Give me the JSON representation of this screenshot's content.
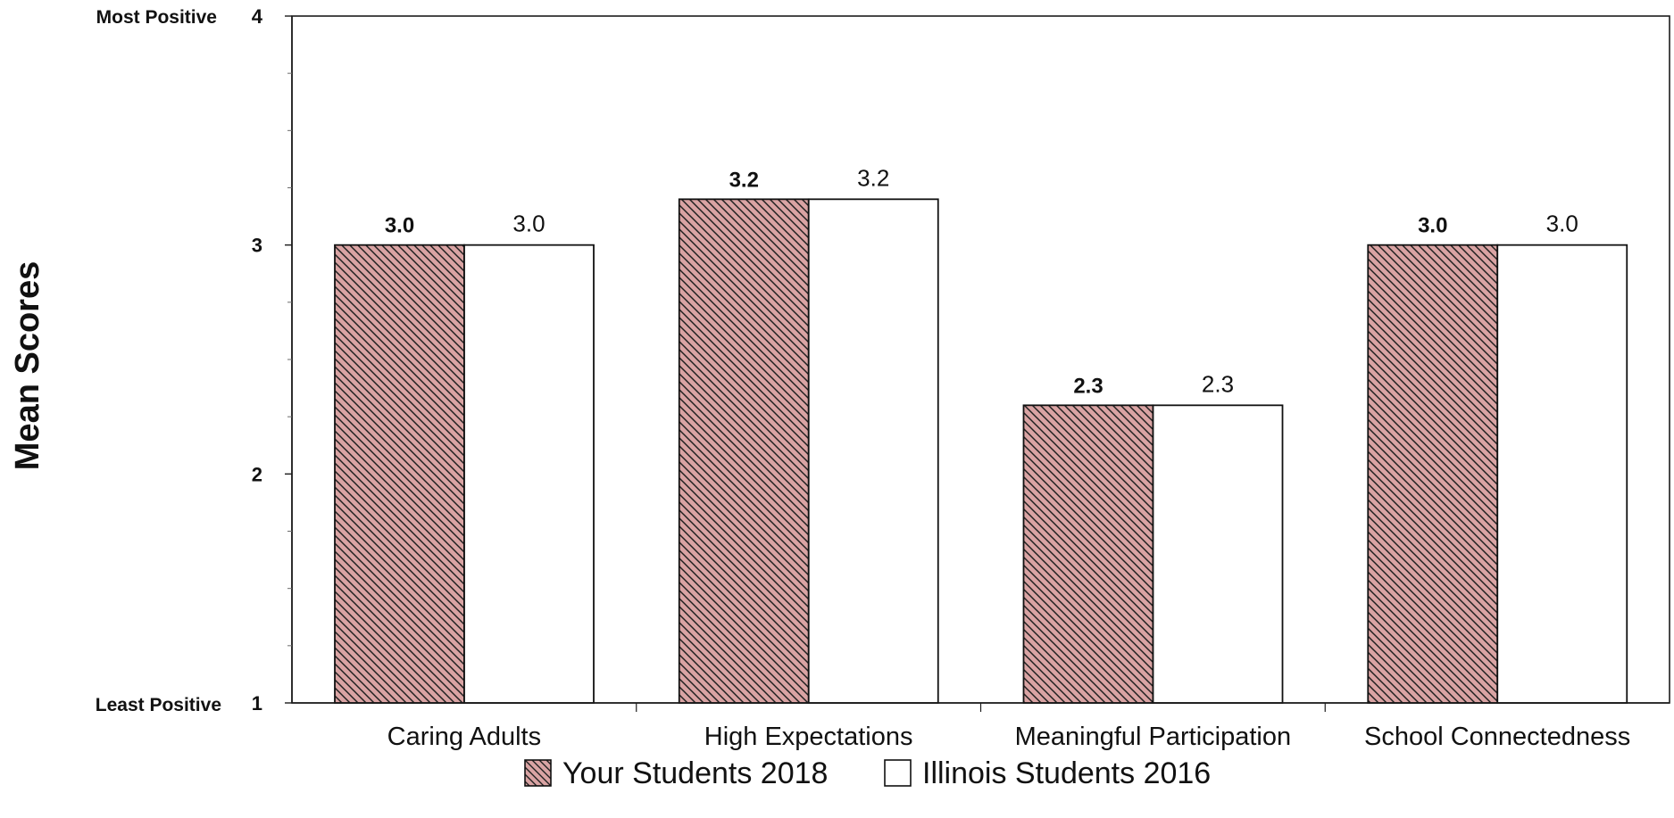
{
  "chart_data": {
    "type": "bar",
    "title": "",
    "xlabel": "",
    "ylabel": "Mean Scores",
    "ylim": [
      1,
      4
    ],
    "y_ticks": [
      1,
      2,
      3,
      4
    ],
    "y_anchor_labels": {
      "top": "Most Positive",
      "bottom": "Least Positive"
    },
    "categories": [
      "Caring Adults",
      "High Expectations",
      "Meaningful Participation",
      "School Connectedness"
    ],
    "series": [
      {
        "name": "Your Students 2018",
        "values": [
          3.0,
          3.2,
          2.3,
          3.0
        ],
        "labels": [
          "3.0",
          "3.2",
          "2.3",
          "3.0"
        ],
        "color": "#d9a3a3",
        "pattern": "diagonal-hatch"
      },
      {
        "name": "Illinois Students 2016",
        "values": [
          3.0,
          3.2,
          2.3,
          3.0
        ],
        "labels": [
          "3.0",
          "3.2",
          "2.3",
          "3.0"
        ],
        "color": "#ffffff",
        "pattern": "solid"
      }
    ],
    "legend_position": "bottom-center",
    "grid": false
  }
}
